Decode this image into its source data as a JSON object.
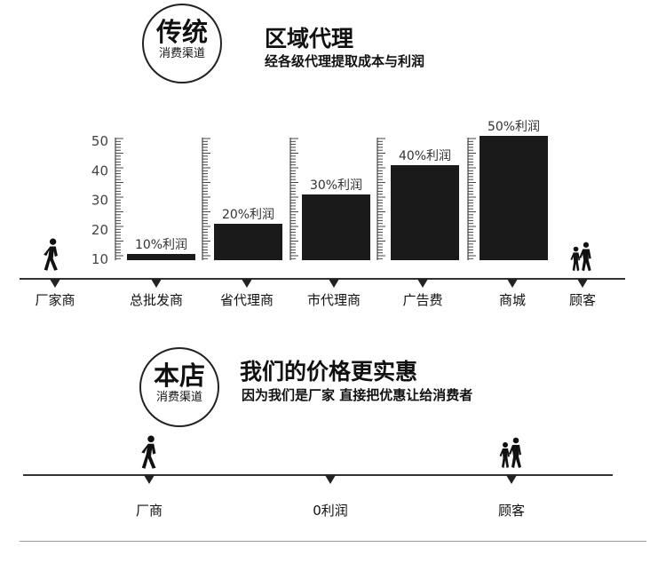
{
  "section1": {
    "badge_main": "传统",
    "badge_sub": "消费渠道",
    "title": "区域代理",
    "subtitle": "经各级代理提取成本与利润"
  },
  "chart_data": {
    "type": "bar",
    "categories": [
      "总批发商",
      "省代理商",
      "市代理商",
      "广告费",
      "商城"
    ],
    "values": [
      10,
      20,
      30,
      40,
      50
    ],
    "data_labels": [
      "10%利润",
      "20%利润",
      "30%利润",
      "40%利润",
      "50%利润"
    ],
    "y_ticks": [
      "10",
      "20",
      "30",
      "40",
      "50"
    ],
    "ylim": [
      10,
      50
    ],
    "bar_color": "#1a1a1a",
    "nodes": [
      "厂家商",
      "总批发商",
      "省代理商",
      "市代理商",
      "广告费",
      "商城",
      "顾客"
    ]
  },
  "section2": {
    "badge_main": "本店",
    "badge_sub": "消费渠道",
    "title": "我们的价格更实惠",
    "subtitle": "因为我们是厂家  直接把优惠让给消费者",
    "nodes": [
      "厂商",
      "0利润",
      "顾客"
    ]
  },
  "icons": {
    "walker": "person-walking-icon",
    "customers": "people-walking-icon"
  }
}
